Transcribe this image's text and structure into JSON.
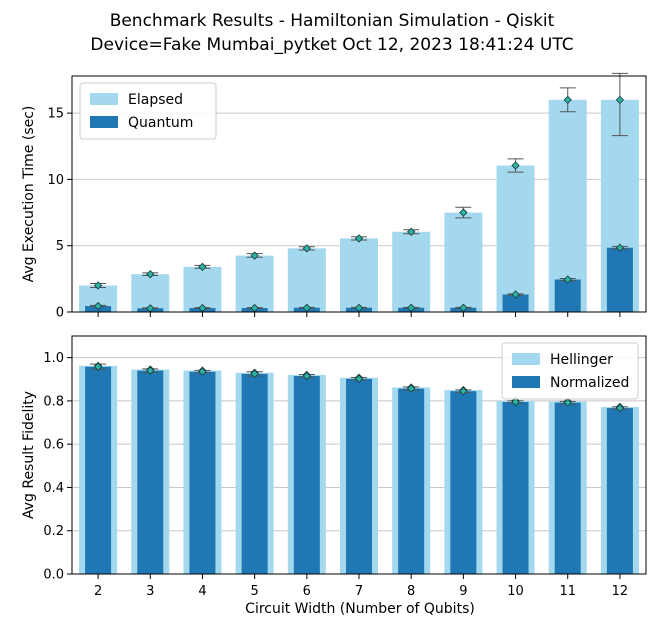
{
  "figure": {
    "title_line1": "Benchmark Results - Hamiltonian Simulation - Qiskit",
    "title_line2": "Device=Fake Mumbai_pytket  Oct 12, 2023 18:41:24 UTC"
  },
  "colors": {
    "light": "#a3d8ee",
    "dark": "#1f77b4",
    "marker": "#2ab3a3",
    "grid": "#c8c8c8",
    "errorbar": "#555555"
  },
  "chart_data": [
    {
      "type": "bar",
      "title": "",
      "xlabel": "",
      "ylabel": "Avg Execution Time (sec)",
      "ylim": [
        0,
        17.8
      ],
      "yticks": [
        0,
        5,
        10,
        15
      ],
      "grid": true,
      "legend_position": "top-left",
      "categories": [
        "2",
        "3",
        "4",
        "5",
        "6",
        "7",
        "8",
        "9",
        "10",
        "11",
        "12"
      ],
      "series": [
        {
          "name": "Elapsed",
          "values": [
            2.0,
            2.85,
            3.4,
            4.25,
            4.8,
            5.55,
            6.05,
            7.5,
            11.05,
            16.0,
            16.0
          ],
          "err_low": [
            0.15,
            0.1,
            0.1,
            0.12,
            0.12,
            0.12,
            0.15,
            0.4,
            0.5,
            0.9,
            2.7
          ],
          "err_high": [
            0.15,
            0.1,
            0.12,
            0.15,
            0.12,
            0.12,
            0.15,
            0.4,
            0.5,
            0.9,
            2.0
          ]
        },
        {
          "name": "Quantum",
          "values": [
            0.45,
            0.28,
            0.3,
            0.3,
            0.32,
            0.32,
            0.32,
            0.32,
            1.32,
            2.45,
            4.85
          ],
          "err_low": [
            0.05,
            0.03,
            0.03,
            0.03,
            0.03,
            0.03,
            0.03,
            0.03,
            0.05,
            0.08,
            0.1
          ],
          "err_high": [
            0.05,
            0.03,
            0.03,
            0.03,
            0.03,
            0.03,
            0.03,
            0.03,
            0.05,
            0.08,
            0.1
          ]
        }
      ]
    },
    {
      "type": "bar",
      "title": "",
      "xlabel": "Circuit Width (Number of Qubits)",
      "ylabel": "Avg Result Fidelity",
      "ylim": [
        0,
        1.1
      ],
      "yticks": [
        0.0,
        0.2,
        0.4,
        0.6,
        0.8,
        1.0
      ],
      "ytick_labels": [
        "0.0",
        "0.2",
        "0.4",
        "0.6",
        "0.8",
        "1.0"
      ],
      "grid": true,
      "legend_position": "top-right",
      "categories": [
        "2",
        "3",
        "4",
        "5",
        "6",
        "7",
        "8",
        "9",
        "10",
        "11",
        "12"
      ],
      "series": [
        {
          "name": "Hellinger",
          "values": [
            0.962,
            0.945,
            0.94,
            0.93,
            0.92,
            0.907,
            0.862,
            0.85,
            0.8,
            0.797,
            0.772
          ]
        },
        {
          "name": "Normalized",
          "values": [
            0.958,
            0.94,
            0.935,
            0.925,
            0.915,
            0.902,
            0.857,
            0.845,
            0.795,
            0.792,
            0.767
          ],
          "err": [
            0.012,
            0.008,
            0.006,
            0.01,
            0.007,
            0.006,
            0.008,
            0.006,
            0.006,
            0.006,
            0.006
          ]
        }
      ]
    }
  ]
}
